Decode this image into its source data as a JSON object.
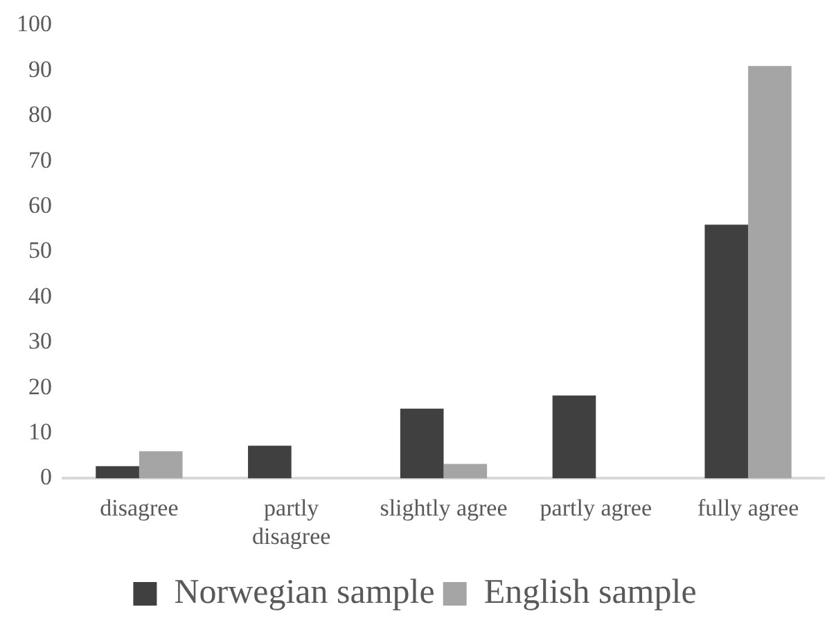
{
  "chart_data": {
    "type": "bar",
    "categories": [
      "disagree",
      "partly disagree",
      "slightly agree",
      "partly agree",
      "fully agree"
    ],
    "series": [
      {
        "name": "Norwegian sample",
        "color": "#404040",
        "values": [
          2.7,
          7.2,
          15.4,
          18.3,
          56
        ]
      },
      {
        "name": "English sample",
        "color": "#a5a5a5",
        "values": [
          6,
          null,
          3.2,
          null,
          91
        ]
      }
    ],
    "ylim": [
      0,
      100
    ],
    "yticks": [
      0,
      10,
      20,
      30,
      40,
      50,
      60,
      70,
      80,
      90,
      100
    ],
    "grid": false,
    "legend": "bottom"
  }
}
